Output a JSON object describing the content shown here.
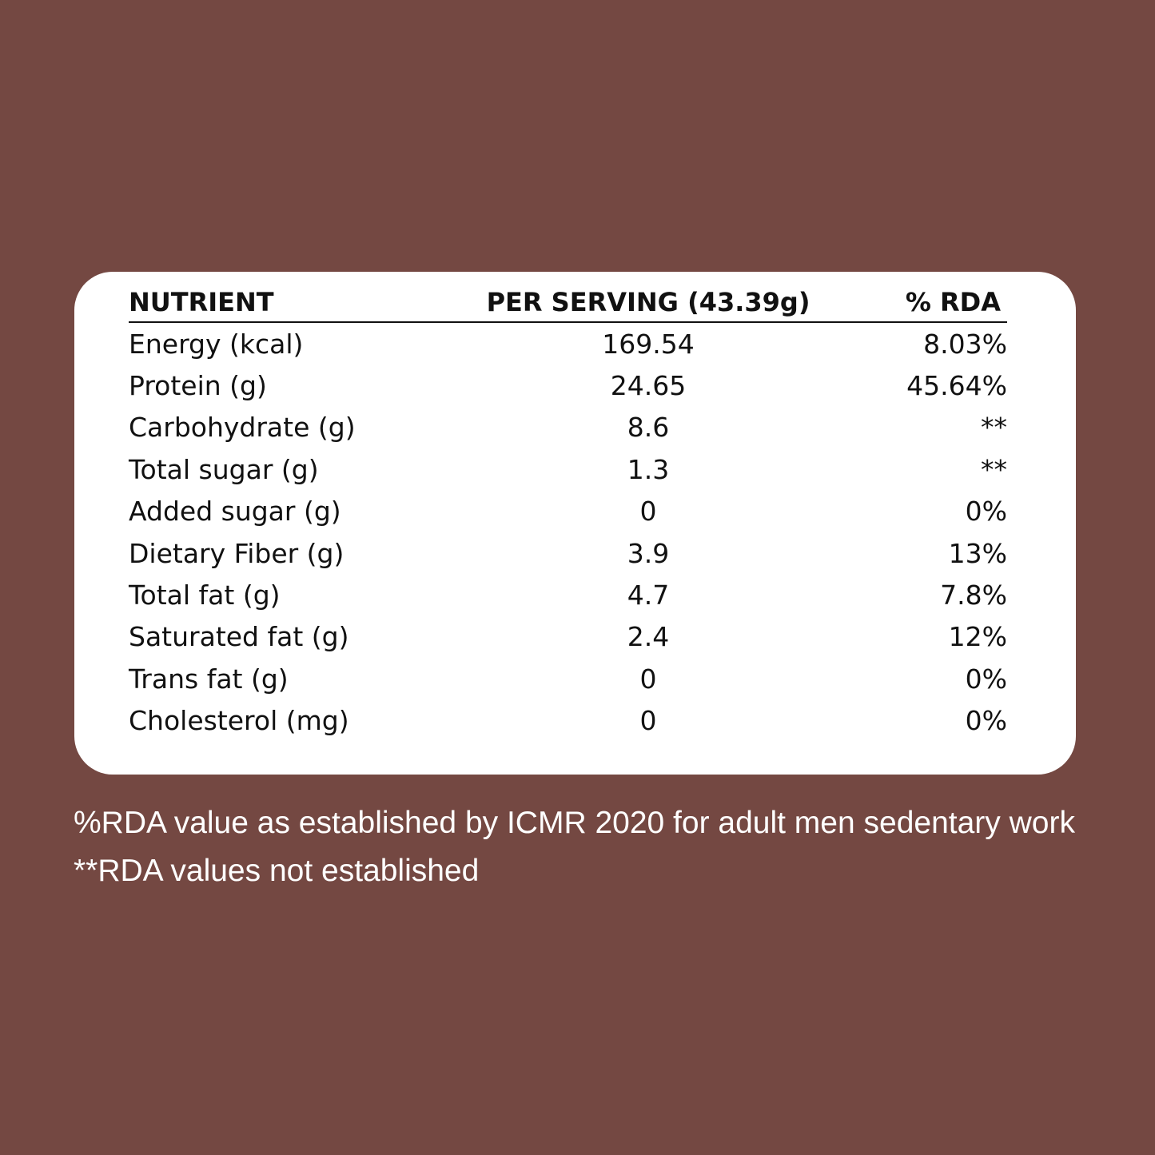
{
  "table": {
    "header": [
      "NUTRIENT",
      "PER SERVING (43.39g)",
      "% RDA"
    ],
    "rows": [
      [
        "Energy (kcal)",
        "169.54",
        "8.03%"
      ],
      [
        "Protein (g)",
        "24.65",
        "45.64%"
      ],
      [
        "Carbohydrate (g)",
        "8.6",
        "**"
      ],
      [
        "Total sugar (g)",
        "1.3",
        "**"
      ],
      [
        "Added sugar (g)",
        "0",
        "0%"
      ],
      [
        "Dietary Fiber (g)",
        "3.9",
        "13%"
      ],
      [
        "Total fat (g)",
        "4.7",
        "7.8%"
      ],
      [
        "Saturated fat (g)",
        "2.4",
        "12%"
      ],
      [
        "Trans fat (g)",
        "0",
        "0%"
      ],
      [
        "Cholesterol (mg)",
        "0",
        "0%"
      ]
    ]
  },
  "notes": [
    "%RDA value as established by ICMR 2020 for adult men sedentary work",
    "**RDA values not established"
  ]
}
